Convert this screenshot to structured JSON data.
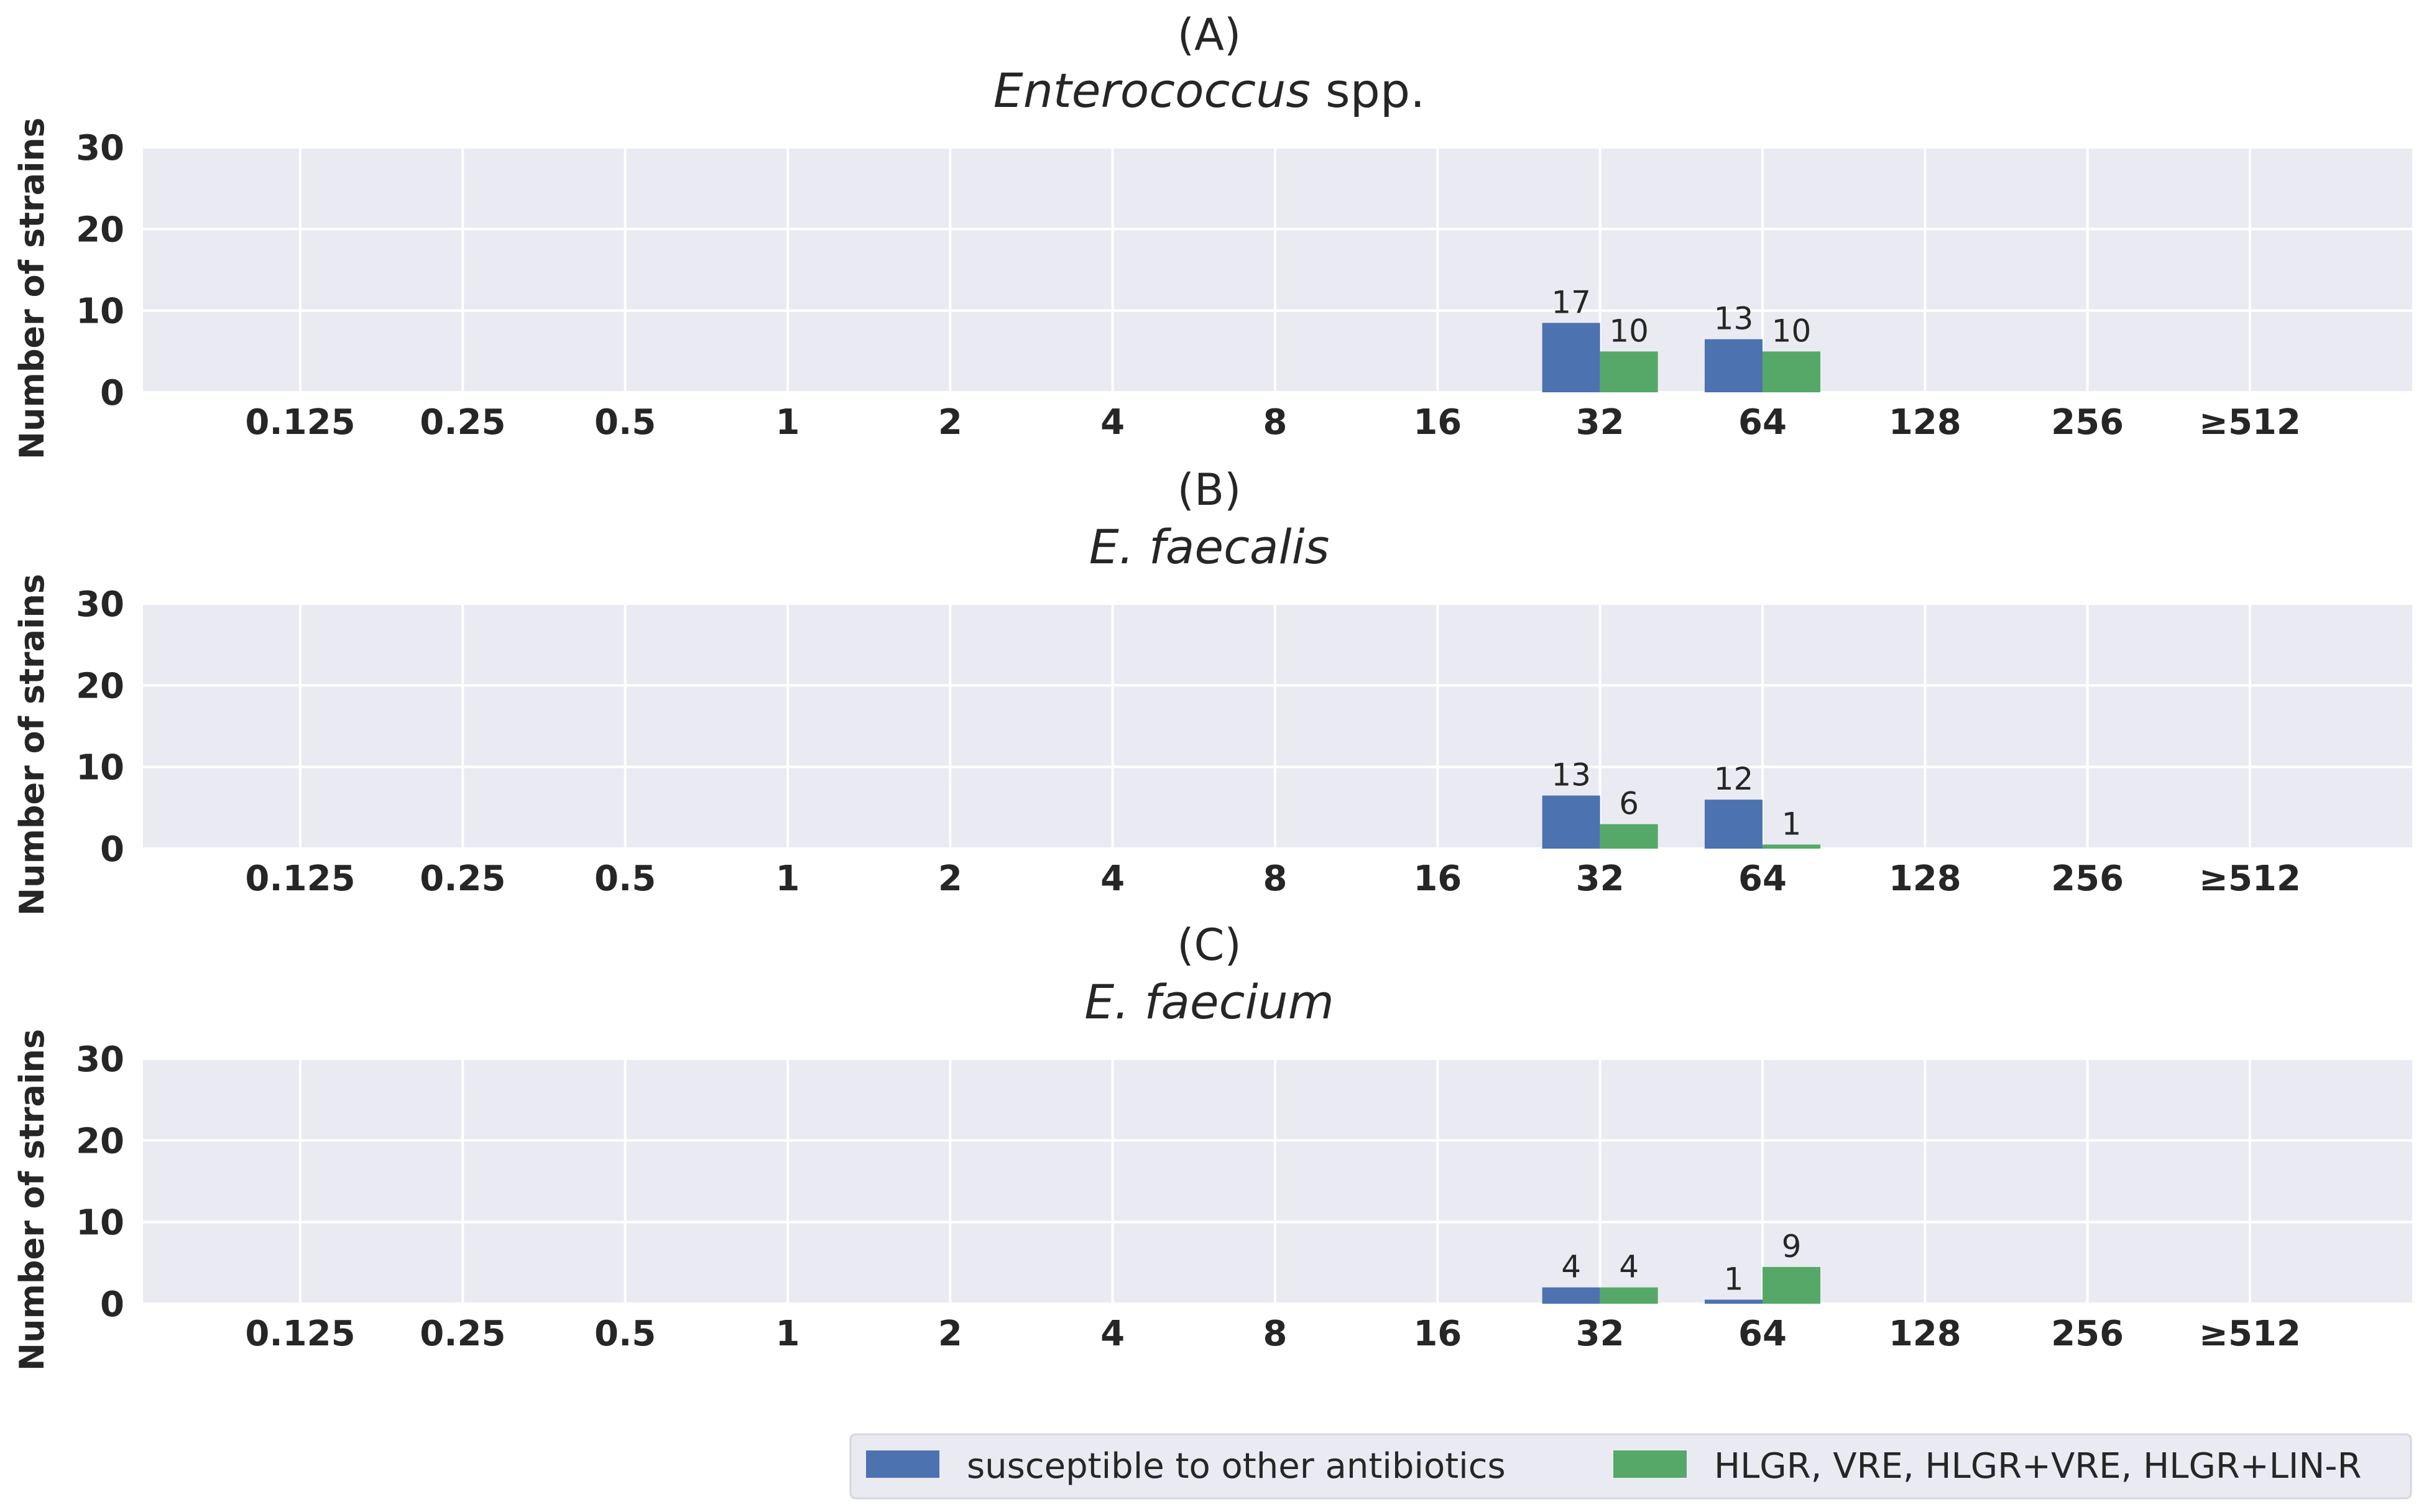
{
  "chart_data": [
    {
      "type": "bar",
      "panel_label": "(A)",
      "title_italic": "Enterococcus",
      "title_rest": " spp.",
      "ylabel": "Number of strains",
      "ylim": [
        0,
        30
      ],
      "yticks": [
        "0",
        "10",
        "20",
        "30"
      ],
      "categories": [
        "0.125",
        "0.25",
        "0.5",
        "1",
        "2",
        "4",
        "8",
        "16",
        "32",
        "64",
        "128",
        "256",
        "≥512"
      ],
      "series": [
        {
          "name": "susceptible to other antibiotics",
          "values": [
            null,
            null,
            null,
            null,
            null,
            null,
            null,
            null,
            8.5,
            6.5,
            null,
            null,
            null
          ],
          "labels": [
            "",
            "",
            "",
            "",
            "",
            "",
            "",
            "",
            "17",
            "13",
            "",
            "",
            ""
          ]
        },
        {
          "name": "HLGR, VRE, HLGR+VRE, HLGR+LIN-R",
          "values": [
            null,
            null,
            null,
            null,
            null,
            null,
            null,
            null,
            5,
            5,
            null,
            null,
            null
          ],
          "labels": [
            "",
            "",
            "",
            "",
            "",
            "",
            "",
            "",
            "10",
            "10",
            "",
            "",
            ""
          ]
        }
      ],
      "grid": true
    },
    {
      "type": "bar",
      "panel_label": "(B)",
      "title_italic": "E. faecalis",
      "title_rest": "",
      "ylabel": "Number of strains",
      "ylim": [
        0,
        30
      ],
      "yticks": [
        "0",
        "10",
        "20",
        "30"
      ],
      "categories": [
        "0.125",
        "0.25",
        "0.5",
        "1",
        "2",
        "4",
        "8",
        "16",
        "32",
        "64",
        "128",
        "256",
        "≥512"
      ],
      "series": [
        {
          "name": "susceptible to other antibiotics",
          "values": [
            null,
            null,
            null,
            null,
            null,
            null,
            null,
            null,
            6.5,
            6,
            null,
            null,
            null
          ],
          "labels": [
            "",
            "",
            "",
            "",
            "",
            "",
            "",
            "",
            "13",
            "12",
            "",
            "",
            ""
          ]
        },
        {
          "name": "HLGR, VRE, HLGR+VRE, HLGR+LIN-R",
          "values": [
            null,
            null,
            null,
            null,
            null,
            null,
            null,
            null,
            3,
            0.5,
            null,
            null,
            null
          ],
          "labels": [
            "",
            "",
            "",
            "",
            "",
            "",
            "",
            "",
            "6",
            "1",
            "",
            "",
            ""
          ]
        }
      ],
      "grid": true
    },
    {
      "type": "bar",
      "panel_label": "(C)",
      "title_italic": "E. faecium",
      "title_rest": "",
      "ylabel": "Number of strains",
      "ylim": [
        0,
        30
      ],
      "yticks": [
        "0",
        "10",
        "20",
        "30"
      ],
      "categories": [
        "0.125",
        "0.25",
        "0.5",
        "1",
        "2",
        "4",
        "8",
        "16",
        "32",
        "64",
        "128",
        "256",
        "≥512"
      ],
      "series": [
        {
          "name": "susceptible to other antibiotics",
          "values": [
            null,
            null,
            null,
            null,
            null,
            null,
            null,
            null,
            2,
            0.5,
            null,
            null,
            null
          ],
          "labels": [
            "",
            "",
            "",
            "",
            "",
            "",
            "",
            "",
            "4",
            "1",
            "",
            "",
            ""
          ]
        },
        {
          "name": "HLGR, VRE, HLGR+VRE, HLGR+LIN-R",
          "values": [
            null,
            null,
            null,
            null,
            null,
            null,
            null,
            null,
            2,
            4.5,
            null,
            null,
            null
          ],
          "labels": [
            "",
            "",
            "",
            "",
            "",
            "",
            "",
            "",
            "4",
            "9",
            "",
            "",
            ""
          ]
        }
      ],
      "grid": true
    }
  ],
  "legend": {
    "placement": "bottom-right",
    "items": [
      {
        "label": "susceptible to other antibiotics",
        "color": "#4c72b0"
      },
      {
        "label": "HLGR, VRE, HLGR+VRE, HLGR+LIN-R",
        "color": "#55a868"
      }
    ]
  },
  "colors": {
    "plot_background": "#eaeaf2",
    "gridline": "#ffffff",
    "series_1": "#4c72b0",
    "series_2": "#55a868"
  }
}
